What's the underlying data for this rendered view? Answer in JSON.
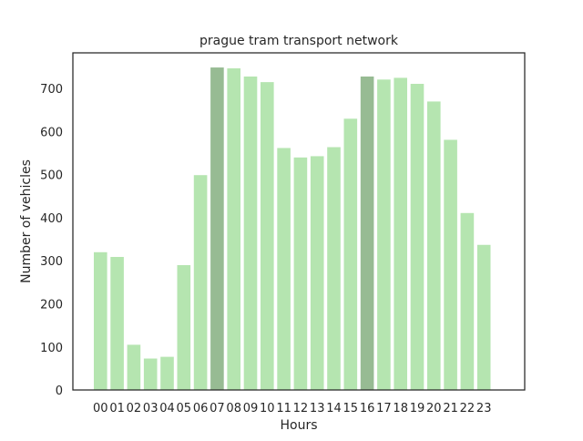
{
  "chart_data": {
    "type": "bar",
    "title": "prague tram transport network",
    "xlabel": "Hours",
    "ylabel": "Number of vehicles",
    "categories": [
      "00",
      "01",
      "02",
      "03",
      "04",
      "05",
      "06",
      "07",
      "08",
      "09",
      "10",
      "11",
      "12",
      "13",
      "14",
      "15",
      "16",
      "17",
      "18",
      "19",
      "20",
      "21",
      "22",
      "23"
    ],
    "values": [
      320,
      309,
      105,
      73,
      77,
      290,
      499,
      749,
      747,
      728,
      715,
      562,
      540,
      543,
      564,
      630,
      728,
      721,
      725,
      711,
      670,
      581,
      411,
      337
    ],
    "highlighted": [
      "07",
      "16"
    ],
    "ylim": [
      0,
      783
    ],
    "yticks": [
      0,
      100,
      200,
      300,
      400,
      500,
      600,
      700
    ],
    "grid": false,
    "colors": {
      "bar": "#b5e5b0",
      "bar_highlight": "#97bb93",
      "axes_edge": "#262626",
      "text": "#262626"
    }
  }
}
